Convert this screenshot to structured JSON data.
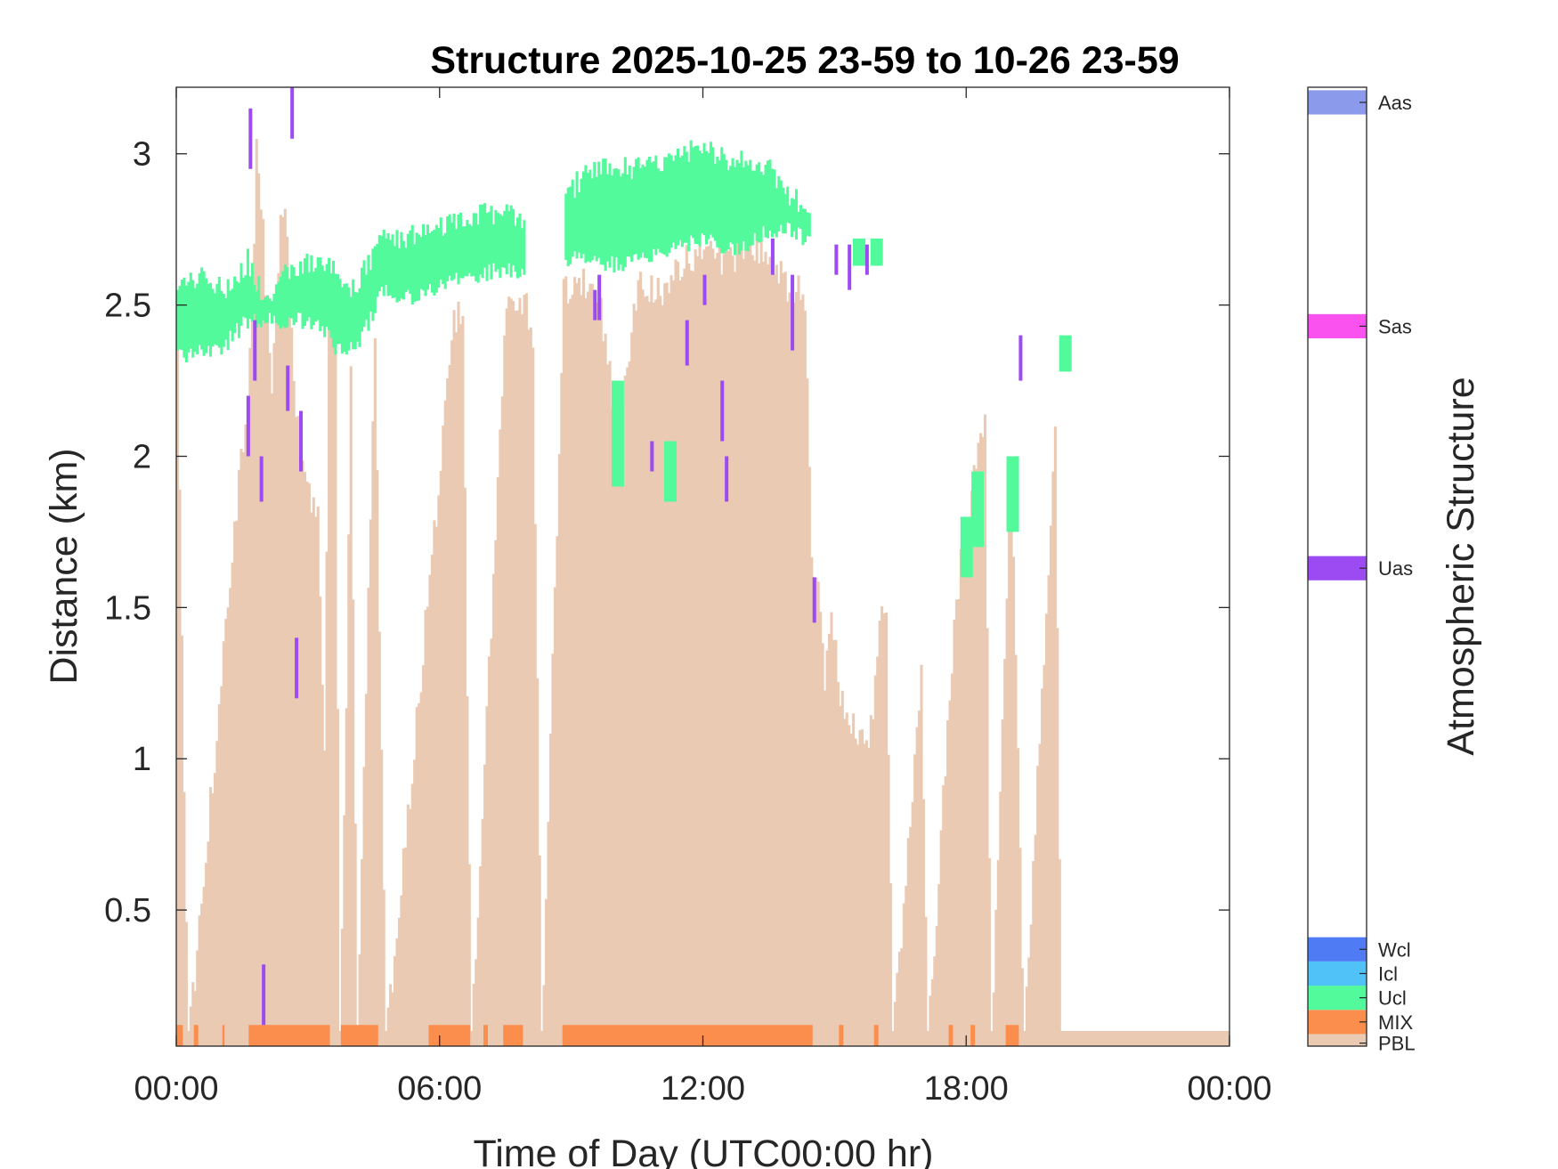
{
  "chart_data": {
    "type": "heatmap",
    "title": "Structure 2025-10-25 23-59 to 10-26 23-59",
    "xlabel": "Time of Day (UTC00:00 hr)",
    "ylabel": "Distance (km)",
    "colorbar_label": "Atmospheric Structure",
    "xlim": [
      0,
      24
    ],
    "ylim": [
      0.05,
      3.22
    ],
    "x_ticks": [
      0,
      6,
      12,
      18,
      24
    ],
    "x_tick_labels": [
      "00:00",
      "06:00",
      "12:00",
      "18:00",
      "00:00"
    ],
    "y_ticks": [
      0.5,
      1,
      1.5,
      2,
      2.5,
      3
    ],
    "y_tick_labels": [
      "0.5",
      "1",
      "1.5",
      "2",
      "2.5",
      "3"
    ],
    "grid": false,
    "categories": [
      {
        "code": "PBL",
        "color": "#ebcab4"
      },
      {
        "code": "MIX",
        "color": "#fb8e4d"
      },
      {
        "code": "Ucl",
        "color": "#52fa9c"
      },
      {
        "code": "Icl",
        "color": "#51c2f7"
      },
      {
        "code": "Wcl",
        "color": "#4f7cf4"
      },
      {
        "code": "Uas",
        "color": "#9c4af1"
      },
      {
        "code": "Sas",
        "color": "#fa52ef"
      },
      {
        "code": "Aas",
        "color": "#8b9aea"
      }
    ],
    "pbl_height_km": [
      [
        0.0,
        2.35
      ],
      [
        0.25,
        0.1
      ],
      [
        1.55,
        2.2
      ],
      [
        1.7,
        2.5
      ],
      [
        1.8,
        3.05
      ],
      [
        1.95,
        2.8
      ],
      [
        2.05,
        2.5
      ],
      [
        2.15,
        2.25
      ],
      [
        2.3,
        2.7
      ],
      [
        2.4,
        2.9
      ],
      [
        2.5,
        2.75
      ],
      [
        2.65,
        2.3
      ],
      [
        2.8,
        2.1
      ],
      [
        3.0,
        1.95
      ],
      [
        3.2,
        1.85
      ],
      [
        3.35,
        1.05
      ],
      [
        3.45,
        2.5
      ],
      [
        3.6,
        2.45
      ],
      [
        3.7,
        0.1
      ],
      [
        3.85,
        1.25
      ],
      [
        3.95,
        2.4
      ],
      [
        4.1,
        0.1
      ],
      [
        4.5,
        2.5
      ],
      [
        4.75,
        0.1
      ],
      [
        6.3,
        2.5
      ],
      [
        6.5,
        2.55
      ],
      [
        6.7,
        0.1
      ],
      [
        7.5,
        2.6
      ],
      [
        7.7,
        2.5
      ],
      [
        7.9,
        2.6
      ],
      [
        8.1,
        2.45
      ],
      [
        8.3,
        0.1
      ],
      [
        8.8,
        2.6
      ],
      [
        9.2,
        2.65
      ],
      [
        9.6,
        2.6
      ],
      [
        10.0,
        2.15
      ],
      [
        10.2,
        2.3
      ],
      [
        10.5,
        2.65
      ],
      [
        11.0,
        2.6
      ],
      [
        11.5,
        2.7
      ],
      [
        12.0,
        2.72
      ],
      [
        12.5,
        2.7
      ],
      [
        13.0,
        2.75
      ],
      [
        13.5,
        2.75
      ],
      [
        14.0,
        2.6
      ],
      [
        14.3,
        2.6
      ],
      [
        14.45,
        1.7
      ],
      [
        14.6,
        1.6
      ],
      [
        14.75,
        1.3
      ],
      [
        14.9,
        1.55
      ],
      [
        15.1,
        1.25
      ],
      [
        15.3,
        1.2
      ],
      [
        15.5,
        1.15
      ],
      [
        15.7,
        1.1
      ],
      [
        15.85,
        1.25
      ],
      [
        16.0,
        1.55
      ],
      [
        16.15,
        1.6
      ],
      [
        16.3,
        0.1
      ],
      [
        16.95,
        1.35
      ],
      [
        17.1,
        0.1
      ],
      [
        17.7,
        1.5
      ],
      [
        17.85,
        1.7
      ],
      [
        18.0,
        1.8
      ],
      [
        18.2,
        2.05
      ],
      [
        18.4,
        2.15
      ],
      [
        18.55,
        0.1
      ],
      [
        19.0,
        2.05
      ],
      [
        19.3,
        0.1
      ],
      [
        20.0,
        2.15
      ],
      [
        20.15,
        0.1
      ],
      [
        24.0,
        0.1
      ]
    ],
    "mix_segments_h": [
      [
        0.0,
        0.15
      ],
      [
        0.4,
        0.5
      ],
      [
        1.05,
        1.1
      ],
      [
        1.65,
        3.5
      ],
      [
        3.75,
        4.6
      ],
      [
        5.75,
        6.7
      ],
      [
        7.0,
        7.1
      ],
      [
        7.45,
        7.9
      ],
      [
        8.8,
        14.5
      ],
      [
        15.1,
        15.2
      ],
      [
        15.9,
        16.0
      ],
      [
        17.6,
        17.7
      ],
      [
        18.1,
        18.2
      ],
      [
        18.9,
        19.2
      ]
    ],
    "ucl_band": [
      [
        0.0,
        2.32,
        2.55
      ],
      [
        0.5,
        2.36,
        2.6
      ],
      [
        1.0,
        2.35,
        2.55
      ],
      [
        1.4,
        2.42,
        2.6
      ],
      [
        1.6,
        2.45,
        2.65
      ],
      [
        2.0,
        2.45,
        2.5
      ],
      [
        2.3,
        2.45,
        2.6
      ],
      [
        2.7,
        2.45,
        2.62
      ],
      [
        3.2,
        2.45,
        2.65
      ],
      [
        3.6,
        2.35,
        2.6
      ],
      [
        4.0,
        2.35,
        2.55
      ],
      [
        4.4,
        2.45,
        2.65
      ],
      [
        4.6,
        2.55,
        2.73
      ],
      [
        5.2,
        2.52,
        2.72
      ],
      [
        5.8,
        2.55,
        2.75
      ],
      [
        6.3,
        2.58,
        2.78
      ],
      [
        6.8,
        2.6,
        2.8
      ],
      [
        7.4,
        2.62,
        2.8
      ],
      [
        7.9,
        2.6,
        2.78
      ],
      [
        8.2,
        null,
        null
      ],
      [
        8.8,
        2.65,
        2.85
      ],
      [
        9.2,
        2.65,
        2.92
      ],
      [
        9.8,
        2.63,
        2.95
      ],
      [
        10.4,
        2.65,
        2.95
      ],
      [
        11.0,
        2.68,
        2.98
      ],
      [
        11.5,
        2.7,
        3.0
      ],
      [
        12.0,
        2.72,
        3.02
      ],
      [
        12.5,
        2.68,
        2.98
      ],
      [
        13.0,
        2.7,
        2.98
      ],
      [
        13.5,
        2.75,
        2.95
      ],
      [
        14.0,
        2.75,
        2.85
      ],
      [
        14.45,
        2.7,
        2.83
      ],
      [
        14.6,
        null,
        null
      ]
    ],
    "ucl_patches": [
      [
        10.0,
        1.9,
        2.25
      ],
      [
        11.2,
        1.85,
        2.05
      ],
      [
        15.5,
        2.63,
        2.72
      ],
      [
        15.9,
        2.63,
        2.72
      ],
      [
        17.95,
        1.6,
        1.8
      ],
      [
        18.2,
        1.7,
        1.95
      ],
      [
        19.0,
        1.75,
        2.0
      ],
      [
        20.2,
        2.28,
        2.4
      ]
    ],
    "uas_segments": [
      [
        1.6,
        2.0,
        2.2
      ],
      [
        1.65,
        2.95,
        3.15
      ],
      [
        1.75,
        2.25,
        2.45
      ],
      [
        1.9,
        1.85,
        2.0
      ],
      [
        1.95,
        0.12,
        0.32
      ],
      [
        2.5,
        2.15,
        2.3
      ],
      [
        2.6,
        3.05,
        3.22
      ],
      [
        2.7,
        1.2,
        1.4
      ],
      [
        2.8,
        1.95,
        2.15
      ],
      [
        9.5,
        2.45,
        2.55
      ],
      [
        9.6,
        2.45,
        2.6
      ],
      [
        10.8,
        1.95,
        2.05
      ],
      [
        11.6,
        2.3,
        2.45
      ],
      [
        12.0,
        2.5,
        2.6
      ],
      [
        12.4,
        2.05,
        2.25
      ],
      [
        12.5,
        1.85,
        2.0
      ],
      [
        13.55,
        2.6,
        2.72
      ],
      [
        14.0,
        2.35,
        2.6
      ],
      [
        14.5,
        1.45,
        1.6
      ],
      [
        15.0,
        2.6,
        2.7
      ],
      [
        15.3,
        2.55,
        2.7
      ],
      [
        15.7,
        2.6,
        2.7
      ],
      [
        19.2,
        2.25,
        2.4
      ]
    ],
    "colorbar_ticks": [
      "PBL",
      "MIX",
      "Ucl",
      "Icl",
      "Wcl",
      "Uas",
      "Sas",
      "Aas"
    ]
  }
}
